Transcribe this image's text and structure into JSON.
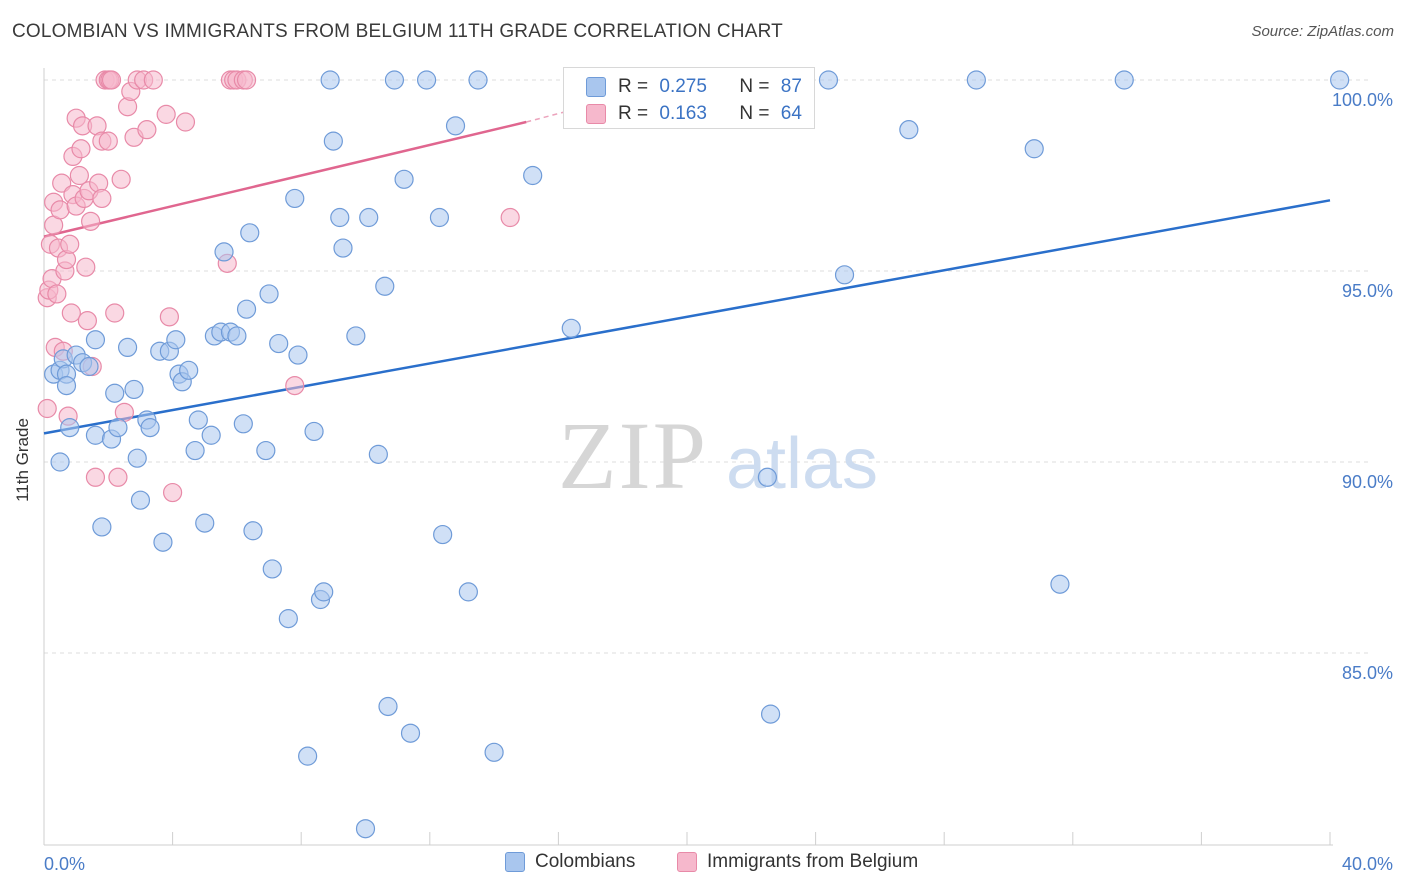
{
  "title": "COLOMBIAN VS IMMIGRANTS FROM BELGIUM 11TH GRADE CORRELATION CHART",
  "source": "Source: ZipAtlas.com",
  "watermark": {
    "zip": "ZIP",
    "atlas": "atlas"
  },
  "colors": {
    "blue_fill": "#a9c6ee",
    "blue_stroke": "#6f9bd8",
    "blue_line": "#2a6fcb",
    "pink_fill": "#f6b8cc",
    "pink_stroke": "#e88aa8",
    "pink_line": "#e0668f",
    "axis_text": "#4a7cc7",
    "grid": "#dcdcdc"
  },
  "legend_top": [
    {
      "series": "Colombians",
      "r_label": "R =",
      "r_value": "0.275",
      "n_label": "N =",
      "n_value": "87"
    },
    {
      "series": "Immigrants from Belgium",
      "r_label": "R =",
      "r_value": "0.163",
      "n_label": "N =",
      "n_value": "64"
    }
  ],
  "chart_data": {
    "type": "scatter",
    "title": "COLOMBIAN VS IMMIGRANTS FROM BELGIUM 11TH GRADE CORRELATION CHART",
    "xlabel": "",
    "ylabel": "11th Grade",
    "xlim": [
      0,
      40
    ],
    "ylim": [
      80,
      100.5
    ],
    "x_tick_labels": [
      "0.0%",
      "40.0%"
    ],
    "y_ticks": [
      85,
      90,
      95,
      100
    ],
    "y_tick_labels": [
      "85.0%",
      "90.0%",
      "95.0%",
      "100.0%"
    ],
    "grid": true,
    "legend_position": "bottom",
    "series": [
      {
        "name": "Colombians",
        "color": "#a9c6ee",
        "trend": {
          "x0": 0,
          "y0": 90.75,
          "x1": 40,
          "y1": 96.85
        },
        "points": [
          [
            0.3,
            92.3
          ],
          [
            0.5,
            92.4
          ],
          [
            0.6,
            92.7
          ],
          [
            0.7,
            92.3
          ],
          [
            0.5,
            90.0
          ],
          [
            0.8,
            90.9
          ],
          [
            0.7,
            92.0
          ],
          [
            1.0,
            92.8
          ],
          [
            1.2,
            92.6
          ],
          [
            1.4,
            92.5
          ],
          [
            1.6,
            90.7
          ],
          [
            1.6,
            93.2
          ],
          [
            1.8,
            88.3
          ],
          [
            2.1,
            90.6
          ],
          [
            2.2,
            91.8
          ],
          [
            2.3,
            90.9
          ],
          [
            2.6,
            93.0
          ],
          [
            2.8,
            91.9
          ],
          [
            2.9,
            90.1
          ],
          [
            3.0,
            89.0
          ],
          [
            3.2,
            91.1
          ],
          [
            3.3,
            90.9
          ],
          [
            3.6,
            92.9
          ],
          [
            3.7,
            87.9
          ],
          [
            3.9,
            92.9
          ],
          [
            4.1,
            93.2
          ],
          [
            4.2,
            92.3
          ],
          [
            4.3,
            92.1
          ],
          [
            4.5,
            92.4
          ],
          [
            4.7,
            90.3
          ],
          [
            4.8,
            91.1
          ],
          [
            5.0,
            88.4
          ],
          [
            5.2,
            90.7
          ],
          [
            5.3,
            93.3
          ],
          [
            5.5,
            93.4
          ],
          [
            5.6,
            95.5
          ],
          [
            5.8,
            93.4
          ],
          [
            6.0,
            93.3
          ],
          [
            6.2,
            91.0
          ],
          [
            6.3,
            94.0
          ],
          [
            6.4,
            96.0
          ],
          [
            6.5,
            88.2
          ],
          [
            6.9,
            90.3
          ],
          [
            7.0,
            94.4
          ],
          [
            7.1,
            87.2
          ],
          [
            7.3,
            93.1
          ],
          [
            7.6,
            85.9
          ],
          [
            7.8,
            96.9
          ],
          [
            7.9,
            92.8
          ],
          [
            8.2,
            82.3
          ],
          [
            8.4,
            90.8
          ],
          [
            8.6,
            86.4
          ],
          [
            8.7,
            86.6
          ],
          [
            8.9,
            100.0
          ],
          [
            9.0,
            98.4
          ],
          [
            9.2,
            96.4
          ],
          [
            9.3,
            95.6
          ],
          [
            9.7,
            93.3
          ],
          [
            10.0,
            80.4
          ],
          [
            10.1,
            96.4
          ],
          [
            10.4,
            90.2
          ],
          [
            10.6,
            94.6
          ],
          [
            10.7,
            83.6
          ],
          [
            10.9,
            100.0
          ],
          [
            11.2,
            97.4
          ],
          [
            11.4,
            82.9
          ],
          [
            11.9,
            100.0
          ],
          [
            12.3,
            96.4
          ],
          [
            12.4,
            88.1
          ],
          [
            12.8,
            98.8
          ],
          [
            13.2,
            86.6
          ],
          [
            13.5,
            100.0
          ],
          [
            14.0,
            82.4
          ],
          [
            15.2,
            97.5
          ],
          [
            16.4,
            93.5
          ],
          [
            18.2,
            100.0
          ],
          [
            22.0,
            100.0
          ],
          [
            22.5,
            89.6
          ],
          [
            22.6,
            83.4
          ],
          [
            24.4,
            100.0
          ],
          [
            24.9,
            94.9
          ],
          [
            26.9,
            98.7
          ],
          [
            29.0,
            100.0
          ],
          [
            30.8,
            98.2
          ],
          [
            31.6,
            86.8
          ],
          [
            33.6,
            100.0
          ],
          [
            40.3,
            100.0
          ]
        ]
      },
      {
        "name": "Immigrants from Belgium",
        "color": "#f6b8cc",
        "trend": {
          "x0": 0,
          "y0": 95.9,
          "x1": 15.0,
          "y1": 98.9
        },
        "points": [
          [
            0.1,
            91.4
          ],
          [
            0.1,
            94.3
          ],
          [
            0.15,
            94.5
          ],
          [
            0.2,
            95.7
          ],
          [
            0.25,
            94.8
          ],
          [
            0.3,
            96.8
          ],
          [
            0.3,
            96.2
          ],
          [
            0.35,
            93.0
          ],
          [
            0.4,
            94.4
          ],
          [
            0.45,
            95.6
          ],
          [
            0.5,
            96.6
          ],
          [
            0.55,
            97.3
          ],
          [
            0.6,
            92.9
          ],
          [
            0.65,
            95.0
          ],
          [
            0.7,
            95.3
          ],
          [
            0.75,
            91.2
          ],
          [
            0.8,
            95.7
          ],
          [
            0.85,
            93.9
          ],
          [
            0.9,
            98.0
          ],
          [
            0.9,
            97.0
          ],
          [
            1.0,
            99.0
          ],
          [
            1.0,
            96.7
          ],
          [
            1.1,
            97.5
          ],
          [
            1.15,
            98.2
          ],
          [
            1.2,
            98.8
          ],
          [
            1.25,
            96.9
          ],
          [
            1.3,
            95.1
          ],
          [
            1.35,
            93.7
          ],
          [
            1.4,
            97.1
          ],
          [
            1.45,
            96.3
          ],
          [
            1.5,
            92.5
          ],
          [
            1.6,
            89.6
          ],
          [
            1.65,
            98.8
          ],
          [
            1.7,
            97.3
          ],
          [
            1.8,
            98.4
          ],
          [
            1.8,
            96.9
          ],
          [
            1.9,
            100.0
          ],
          [
            2.0,
            100.0
          ],
          [
            2.0,
            98.4
          ],
          [
            2.05,
            100.0
          ],
          [
            2.1,
            100.0
          ],
          [
            2.2,
            93.9
          ],
          [
            2.3,
            89.6
          ],
          [
            2.4,
            97.4
          ],
          [
            2.5,
            91.3
          ],
          [
            2.6,
            99.3
          ],
          [
            2.7,
            99.7
          ],
          [
            2.8,
            98.5
          ],
          [
            2.9,
            100.0
          ],
          [
            3.1,
            100.0
          ],
          [
            3.2,
            98.7
          ],
          [
            3.4,
            100.0
          ],
          [
            3.8,
            99.1
          ],
          [
            3.9,
            93.8
          ],
          [
            4.0,
            89.2
          ],
          [
            4.4,
            98.9
          ],
          [
            5.7,
            95.2
          ],
          [
            5.8,
            100.0
          ],
          [
            5.9,
            100.0
          ],
          [
            6.0,
            100.0
          ],
          [
            6.2,
            100.0
          ],
          [
            6.3,
            100.0
          ],
          [
            7.8,
            92.0
          ],
          [
            14.5,
            96.4
          ]
        ]
      }
    ]
  }
}
